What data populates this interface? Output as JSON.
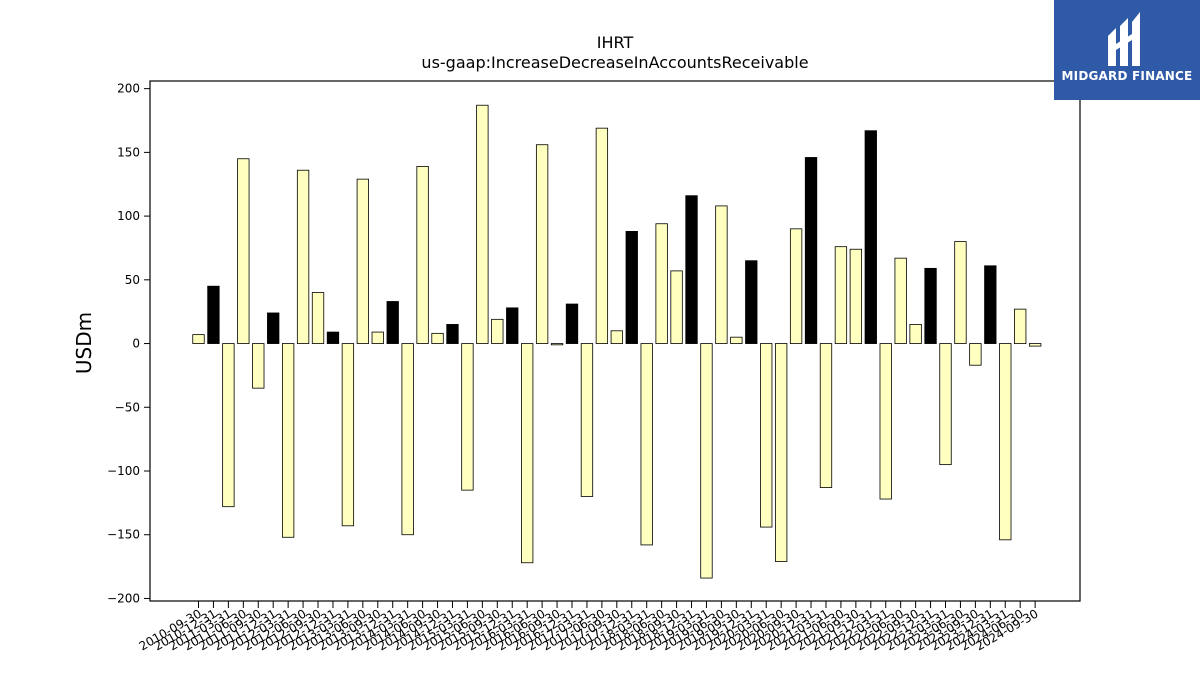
{
  "chart_data": {
    "type": "bar",
    "title": "IHRT",
    "subtitle": "us-gaap:IncreaseDecreaseInAccountsReceivable",
    "xlabel": "",
    "ylabel": "USDm",
    "ylim": [
      -202,
      206
    ],
    "yticks": [
      -200,
      -150,
      -100,
      -50,
      0,
      50,
      100,
      150,
      200
    ],
    "grid": false,
    "colors": {
      "q4_bar": "#000000",
      "other_bar": "#ffffc0",
      "edge": "#000000"
    },
    "categories": [
      "2010-09-30",
      "2010-12-31",
      "2011-03-31",
      "2011-06-30",
      "2011-09-30",
      "2011-12-31",
      "2012-03-31",
      "2012-06-30",
      "2012-09-30",
      "2012-12-31",
      "2013-03-31",
      "2013-06-30",
      "2013-09-30",
      "2013-12-31",
      "2014-03-31",
      "2014-06-30",
      "2014-09-30",
      "2014-12-31",
      "2015-03-31",
      "2015-06-30",
      "2015-09-30",
      "2015-12-31",
      "2016-03-31",
      "2016-06-30",
      "2016-09-30",
      "2016-12-31",
      "2017-03-31",
      "2017-06-30",
      "2017-09-30",
      "2017-12-31",
      "2018-03-31",
      "2018-06-30",
      "2018-09-30",
      "2018-12-31",
      "2019-03-31",
      "2019-06-30",
      "2019-09-30",
      "2019-12-31",
      "2020-03-31",
      "2020-06-30",
      "2020-09-30",
      "2020-12-31",
      "2021-03-31",
      "2021-06-30",
      "2021-09-30",
      "2021-12-31",
      "2022-03-31",
      "2022-06-30",
      "2022-09-30",
      "2022-12-31",
      "2023-03-31",
      "2023-06-30",
      "2023-09-30",
      "2023-12-31",
      "2024-03-31",
      "2024-06-30",
      "2024-09-30"
    ],
    "values": [
      7,
      45,
      -128,
      145,
      -35,
      24,
      -152,
      136,
      40,
      9,
      -143,
      129,
      9,
      33,
      -150,
      139,
      8,
      15,
      -115,
      187,
      19,
      28,
      -172,
      156,
      -1,
      31,
      -120,
      169,
      10,
      88,
      -158,
      94,
      57,
      116,
      -184,
      108,
      5,
      65,
      -144,
      -171,
      90,
      146,
      -113,
      76,
      74,
      167,
      -122,
      67,
      15,
      59,
      -95,
      80,
      -17,
      61,
      -154,
      27,
      -2
    ]
  },
  "logo": {
    "text": "MIDGARD FINANCE"
  }
}
